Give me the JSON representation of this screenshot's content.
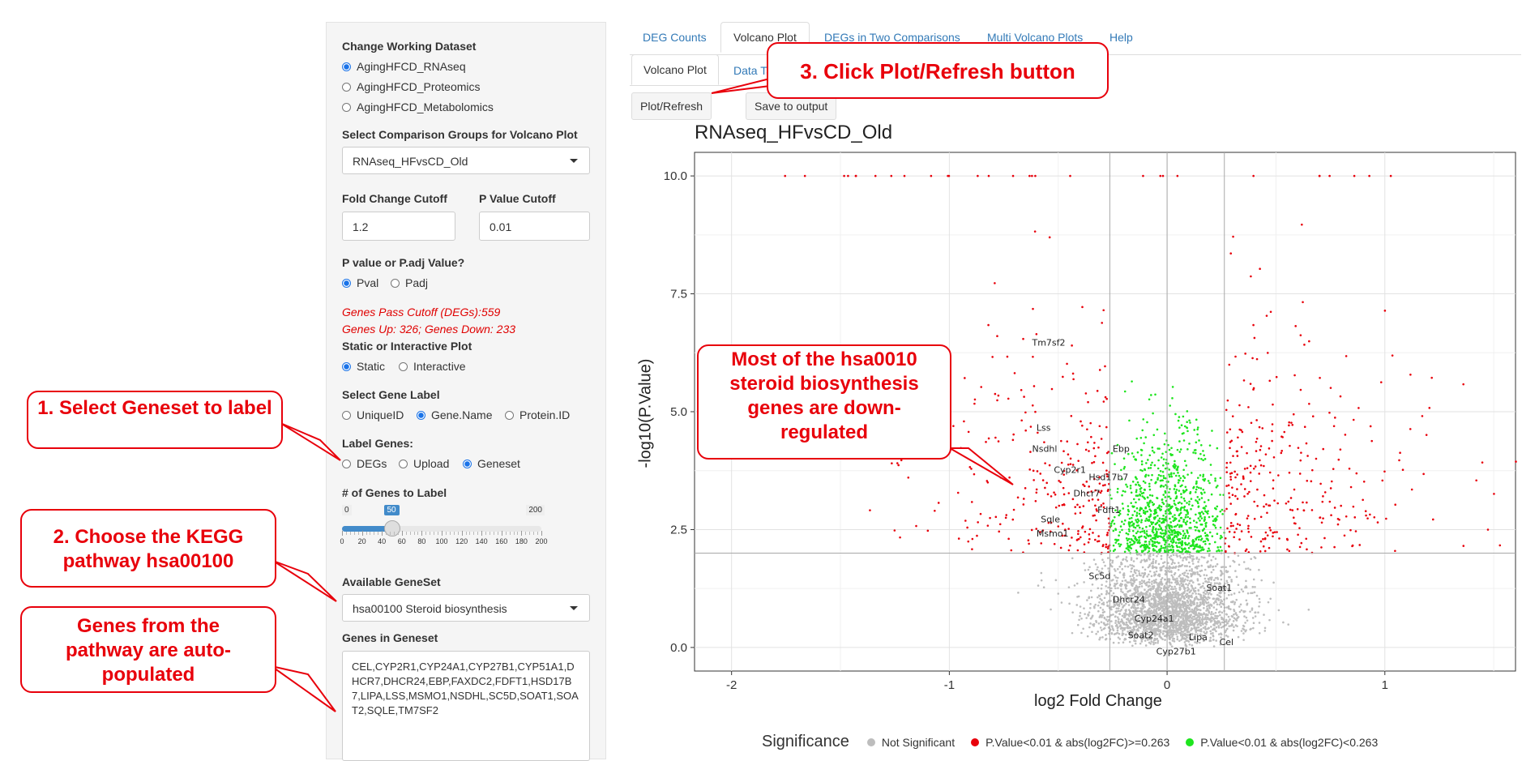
{
  "sidebar": {
    "dataset_label": "Change Working Dataset",
    "datasets": [
      "AgingHFCD_RNAseq",
      "AgingHFCD_Proteomics",
      "AgingHFCD_Metabolomics"
    ],
    "comparison_label": "Select Comparison Groups for Volcano Plot",
    "comparison_value": "RNAseq_HFvsCD_Old",
    "fc_label": "Fold Change Cutoff",
    "fc_value": "1.2",
    "p_label": "P Value Cutoff",
    "p_value": "0.01",
    "pval_type_label": "P value or P.adj Value?",
    "pval_opts": [
      "Pval",
      "Padj"
    ],
    "genes_pass": "Genes Pass Cutoff (DEGs):559",
    "genes_updown": "Genes Up: 326; Genes Down: 233",
    "plot_type_label": "Static or Interactive Plot",
    "plot_type_opts": [
      "Static",
      "Interactive"
    ],
    "gene_label_label": "Select Gene Label",
    "gene_label_opts": [
      "UniqueID",
      "Gene.Name",
      "Protein.ID"
    ],
    "label_genes_label": "Label Genes:",
    "label_genes_opts": [
      "DEGs",
      "Upload",
      "Geneset"
    ],
    "num_genes_label": "# of Genes to Label",
    "slider_min": "0",
    "slider_max": "200",
    "slider_value": "50",
    "slider_value_num": 50,
    "slider_ticks": [
      "0",
      "20",
      "40",
      "60",
      "80",
      "100",
      "120",
      "140",
      "160",
      "180",
      "200"
    ],
    "geneset_label": "Available GeneSet",
    "geneset_value": "hsa00100 Steroid biosynthesis",
    "genes_in_label": "Genes in Geneset",
    "genes_in_value": "CEL,CYP2R1,CYP24A1,CYP27B1,CYP51A1,DHCR7,DHCR24,EBP,FAXDC2,FDFT1,HSD17B7,LIPA,LSS,MSMO1,NSDHL,SC5D,SOAT1,SOAT2,SQLE,TM7SF2"
  },
  "tabs": [
    "DEG Counts",
    "Volcano Plot",
    "DEGs in Two Comparisons",
    "Multi Volcano Plots",
    "Help"
  ],
  "subtabs": [
    "Volcano Plot",
    "Data Table"
  ],
  "buttons": {
    "plot_refresh": "Plot/Refresh",
    "save": "Save to output"
  },
  "callouts": {
    "c1": "1. Select Geneset to label",
    "c2": "2. Choose the KEGG pathway hsa00100",
    "c3": "Genes from the pathway are auto-populated",
    "c4": "3.  Click Plot/Refresh button",
    "c5": "Most of the hsa0010 steroid biosynthesis genes are down-regulated"
  },
  "legend": {
    "title": "Significance",
    "items": [
      {
        "label": "Not Significant",
        "color": "#bdbdbd"
      },
      {
        "label": "P.Value<0.01 & abs(log2FC)>=0.263",
        "color": "#e8000b"
      },
      {
        "label": "P.Value<0.01 & abs(log2FC)<0.263",
        "color": "#1ee51e"
      }
    ]
  },
  "chart_data": {
    "type": "scatter",
    "title": "RNAseq_HFvsCD_Old",
    "xlabel": "log2 Fold Change",
    "ylabel": "-log10(P.Value)",
    "xlim": [
      -2.17,
      1.6
    ],
    "ylim": [
      -0.5,
      10.5
    ],
    "xticks": [
      -2,
      -1,
      0,
      1
    ],
    "yticks": [
      0.0,
      2.5,
      5.0,
      7.5,
      10.0
    ],
    "ytick_labels": [
      "0.0",
      "2.5",
      "5.0",
      "7.5",
      "10.0"
    ],
    "fc_threshold": 0.263,
    "p_threshold": 2,
    "grid": true,
    "labeled_genes": [
      {
        "gene": "Tm7sf2",
        "x": -0.62,
        "y": 6.4
      },
      {
        "gene": "Lss",
        "x": -0.6,
        "y": 4.6
      },
      {
        "gene": "Nsdhl",
        "x": -0.62,
        "y": 4.15
      },
      {
        "gene": "Ebp",
        "x": -0.25,
        "y": 4.15
      },
      {
        "gene": "Cyp2r1",
        "x": -0.52,
        "y": 3.7
      },
      {
        "gene": "Hsd17b7",
        "x": -0.36,
        "y": 3.55
      },
      {
        "gene": "Dhcr7",
        "x": -0.43,
        "y": 3.2
      },
      {
        "gene": "Fdft1",
        "x": -0.32,
        "y": 2.85
      },
      {
        "gene": "Sqle",
        "x": -0.58,
        "y": 2.65
      },
      {
        "gene": "Msmo1",
        "x": -0.6,
        "y": 2.35
      },
      {
        "gene": "Sc5d",
        "x": -0.36,
        "y": 1.45
      },
      {
        "gene": "Dhcr24",
        "x": -0.25,
        "y": 0.95
      },
      {
        "gene": "Soat1",
        "x": 0.18,
        "y": 1.2
      },
      {
        "gene": "Cyp24a1",
        "x": -0.15,
        "y": 0.55
      },
      {
        "gene": "Soat2",
        "x": -0.18,
        "y": 0.2
      },
      {
        "gene": "Lipa",
        "x": 0.1,
        "y": 0.15
      },
      {
        "gene": "Cel",
        "x": 0.24,
        "y": 0.05
      },
      {
        "gene": "Cyp27b1",
        "x": -0.05,
        "y": -0.15
      }
    ]
  }
}
